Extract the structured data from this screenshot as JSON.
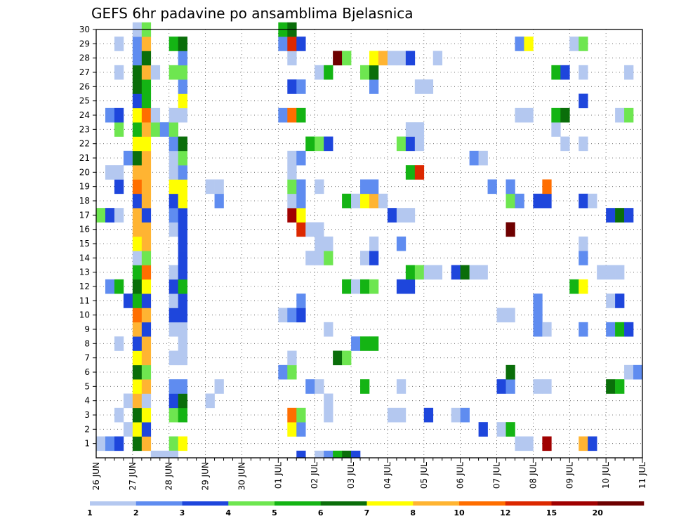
{
  "chart_data": {
    "type": "heatmap",
    "title": "GEFS 6hr padavine po ansamblima Bjelasnica",
    "xlabel": "",
    "ylabel": "",
    "x_ticks": [
      "26 JUN",
      "27 JUN",
      "28 JUN",
      "29 JUN",
      "30 JUN",
      "01 JUL",
      "02 JUL",
      "03 JUL",
      "04 JUL",
      "05 JUL",
      "06 JUL",
      "07 JUL",
      "08 JUL",
      "09 JUL",
      "10 JUL",
      "11 JUL"
    ],
    "y_ticks": [
      "1",
      "2",
      "3",
      "4",
      "5",
      "6",
      "7",
      "8",
      "9",
      "10",
      "11",
      "12",
      "13",
      "14",
      "15",
      "16",
      "17",
      "18",
      "19",
      "20",
      "21",
      "22",
      "23",
      "24",
      "25",
      "26",
      "27",
      "28",
      "29",
      "30"
    ],
    "xlim": [
      0,
      60
    ],
    "ylim": [
      0,
      30
    ],
    "grid": true,
    "colorbar": {
      "labels": [
        "1",
        "2",
        "3",
        "4",
        "5",
        "6",
        "7",
        "8",
        "10",
        "12",
        "15",
        "20"
      ],
      "colors": [
        "#b4c8f0",
        "#5f8cf0",
        "#1e46dc",
        "#6ee650",
        "#14b414",
        "#0a6e0a",
        "#ffff00",
        "#ffb432",
        "#ff6e00",
        "#dc2800",
        "#a00000",
        "#6e0000"
      ]
    },
    "cells": [
      [
        1,
        1,
        1
      ],
      [
        2,
        1,
        2
      ],
      [
        3,
        1,
        3
      ],
      [
        5,
        1,
        6
      ],
      [
        6,
        1,
        8
      ],
      [
        9,
        1,
        4
      ],
      [
        10,
        1,
        7
      ],
      [
        47,
        1,
        1
      ],
      [
        48,
        1,
        1
      ],
      [
        50,
        1,
        11
      ],
      [
        54,
        1,
        8
      ],
      [
        55,
        1,
        3
      ],
      [
        4,
        2,
        1
      ],
      [
        5,
        2,
        7
      ],
      [
        6,
        2,
        3
      ],
      [
        22,
        2,
        7
      ],
      [
        23,
        2,
        2
      ],
      [
        43,
        2,
        3
      ],
      [
        45,
        2,
        1
      ],
      [
        46,
        2,
        5
      ],
      [
        3,
        3,
        1
      ],
      [
        5,
        3,
        6
      ],
      [
        6,
        3,
        7
      ],
      [
        9,
        3,
        4
      ],
      [
        10,
        3,
        5
      ],
      [
        22,
        3,
        9
      ],
      [
        23,
        3,
        4
      ],
      [
        26,
        3,
        1
      ],
      [
        33,
        3,
        1
      ],
      [
        34,
        3,
        1
      ],
      [
        37,
        3,
        3
      ],
      [
        40,
        3,
        1
      ],
      [
        41,
        3,
        2
      ],
      [
        4,
        4,
        1
      ],
      [
        5,
        4,
        8
      ],
      [
        6,
        4,
        1
      ],
      [
        9,
        4,
        3
      ],
      [
        10,
        4,
        6
      ],
      [
        13,
        4,
        1
      ],
      [
        26,
        4,
        1
      ],
      [
        5,
        5,
        7
      ],
      [
        6,
        5,
        8
      ],
      [
        9,
        5,
        2
      ],
      [
        10,
        5,
        2
      ],
      [
        14,
        5,
        1
      ],
      [
        24,
        5,
        2
      ],
      [
        25,
        5,
        1
      ],
      [
        30,
        5,
        5
      ],
      [
        34,
        5,
        1
      ],
      [
        45,
        5,
        3
      ],
      [
        46,
        5,
        2
      ],
      [
        49,
        5,
        1
      ],
      [
        50,
        5,
        1
      ],
      [
        57,
        5,
        6
      ],
      [
        58,
        5,
        5
      ],
      [
        5,
        6,
        6
      ],
      [
        6,
        6,
        4
      ],
      [
        21,
        6,
        2
      ],
      [
        22,
        6,
        4
      ],
      [
        46,
        6,
        6
      ],
      [
        59,
        6,
        1
      ],
      [
        60,
        6,
        2
      ],
      [
        5,
        7,
        7
      ],
      [
        6,
        7,
        8
      ],
      [
        9,
        7,
        1
      ],
      [
        10,
        7,
        1
      ],
      [
        22,
        7,
        1
      ],
      [
        27,
        7,
        6
      ],
      [
        28,
        7,
        4
      ],
      [
        3,
        8,
        1
      ],
      [
        5,
        8,
        3
      ],
      [
        6,
        8,
        8
      ],
      [
        10,
        8,
        1
      ],
      [
        29,
        8,
        2
      ],
      [
        30,
        8,
        5
      ],
      [
        31,
        8,
        5
      ],
      [
        5,
        9,
        8
      ],
      [
        6,
        9,
        3
      ],
      [
        9,
        9,
        1
      ],
      [
        10,
        9,
        1
      ],
      [
        26,
        9,
        1
      ],
      [
        49,
        9,
        2
      ],
      [
        50,
        9,
        1
      ],
      [
        54,
        9,
        2
      ],
      [
        57,
        9,
        2
      ],
      [
        58,
        9,
        5
      ],
      [
        59,
        9,
        3
      ],
      [
        5,
        10,
        9
      ],
      [
        6,
        10,
        8
      ],
      [
        9,
        10,
        3
      ],
      [
        10,
        10,
        3
      ],
      [
        21,
        10,
        1
      ],
      [
        22,
        10,
        2
      ],
      [
        23,
        10,
        3
      ],
      [
        45,
        10,
        1
      ],
      [
        46,
        10,
        1
      ],
      [
        49,
        10,
        2
      ],
      [
        4,
        11,
        3
      ],
      [
        5,
        11,
        5
      ],
      [
        6,
        11,
        3
      ],
      [
        9,
        11,
        1
      ],
      [
        10,
        11,
        3
      ],
      [
        23,
        11,
        2
      ],
      [
        49,
        11,
        2
      ],
      [
        57,
        11,
        1
      ],
      [
        58,
        11,
        3
      ],
      [
        2,
        12,
        2
      ],
      [
        3,
        12,
        5
      ],
      [
        5,
        12,
        6
      ],
      [
        6,
        12,
        7
      ],
      [
        9,
        12,
        3
      ],
      [
        10,
        12,
        5
      ],
      [
        28,
        12,
        5
      ],
      [
        29,
        12,
        1
      ],
      [
        30,
        12,
        5
      ],
      [
        31,
        12,
        4
      ],
      [
        34,
        12,
        3
      ],
      [
        35,
        12,
        3
      ],
      [
        53,
        12,
        5
      ],
      [
        54,
        12,
        7
      ],
      [
        5,
        13,
        5
      ],
      [
        6,
        13,
        9
      ],
      [
        9,
        13,
        1
      ],
      [
        10,
        13,
        3
      ],
      [
        35,
        13,
        5
      ],
      [
        36,
        13,
        4
      ],
      [
        37,
        13,
        1
      ],
      [
        38,
        13,
        1
      ],
      [
        40,
        13,
        3
      ],
      [
        41,
        13,
        6
      ],
      [
        42,
        13,
        1
      ],
      [
        43,
        13,
        1
      ],
      [
        56,
        13,
        1
      ],
      [
        57,
        13,
        1
      ],
      [
        58,
        13,
        1
      ],
      [
        5,
        14,
        1
      ],
      [
        6,
        14,
        4
      ],
      [
        10,
        14,
        3
      ],
      [
        24,
        14,
        1
      ],
      [
        25,
        14,
        1
      ],
      [
        26,
        14,
        4
      ],
      [
        30,
        14,
        1
      ],
      [
        31,
        14,
        3
      ],
      [
        54,
        14,
        2
      ],
      [
        5,
        15,
        7
      ],
      [
        6,
        15,
        8
      ],
      [
        10,
        15,
        3
      ],
      [
        25,
        15,
        1
      ],
      [
        26,
        15,
        1
      ],
      [
        31,
        15,
        1
      ],
      [
        34,
        15,
        2
      ],
      [
        54,
        15,
        1
      ],
      [
        5,
        16,
        8
      ],
      [
        6,
        16,
        8
      ],
      [
        9,
        16,
        1
      ],
      [
        10,
        16,
        3
      ],
      [
        23,
        16,
        10
      ],
      [
        24,
        16,
        1
      ],
      [
        25,
        16,
        1
      ],
      [
        46,
        16,
        12
      ],
      [
        1,
        17,
        4
      ],
      [
        2,
        17,
        3
      ],
      [
        3,
        17,
        1
      ],
      [
        5,
        17,
        8
      ],
      [
        6,
        17,
        3
      ],
      [
        9,
        17,
        2
      ],
      [
        10,
        17,
        3
      ],
      [
        22,
        17,
        11
      ],
      [
        23,
        17,
        7
      ],
      [
        33,
        17,
        3
      ],
      [
        34,
        17,
        1
      ],
      [
        35,
        17,
        1
      ],
      [
        57,
        17,
        3
      ],
      [
        58,
        17,
        6
      ],
      [
        59,
        17,
        3
      ],
      [
        5,
        18,
        3
      ],
      [
        6,
        18,
        8
      ],
      [
        9,
        18,
        3
      ],
      [
        10,
        18,
        7
      ],
      [
        14,
        18,
        2
      ],
      [
        22,
        18,
        1
      ],
      [
        23,
        18,
        2
      ],
      [
        28,
        18,
        5
      ],
      [
        29,
        18,
        1
      ],
      [
        30,
        18,
        7
      ],
      [
        31,
        18,
        8
      ],
      [
        32,
        18,
        1
      ],
      [
        46,
        18,
        4
      ],
      [
        47,
        18,
        2
      ],
      [
        49,
        18,
        3
      ],
      [
        50,
        18,
        3
      ],
      [
        54,
        18,
        3
      ],
      [
        55,
        18,
        1
      ],
      [
        3,
        19,
        3
      ],
      [
        5,
        19,
        9
      ],
      [
        6,
        19,
        8
      ],
      [
        9,
        19,
        7
      ],
      [
        10,
        19,
        7
      ],
      [
        13,
        19,
        1
      ],
      [
        14,
        19,
        1
      ],
      [
        22,
        19,
        4
      ],
      [
        23,
        19,
        2
      ],
      [
        25,
        19,
        1
      ],
      [
        30,
        19,
        2
      ],
      [
        31,
        19,
        2
      ],
      [
        44,
        19,
        2
      ],
      [
        46,
        19,
        2
      ],
      [
        50,
        19,
        9
      ],
      [
        2,
        20,
        1
      ],
      [
        3,
        20,
        1
      ],
      [
        5,
        20,
        8
      ],
      [
        6,
        20,
        8
      ],
      [
        9,
        20,
        1
      ],
      [
        10,
        20,
        2
      ],
      [
        22,
        20,
        1
      ],
      [
        35,
        20,
        5
      ],
      [
        36,
        20,
        10
      ],
      [
        4,
        21,
        2
      ],
      [
        5,
        21,
        6
      ],
      [
        6,
        21,
        8
      ],
      [
        9,
        21,
        1
      ],
      [
        10,
        21,
        4
      ],
      [
        22,
        21,
        1
      ],
      [
        23,
        21,
        2
      ],
      [
        42,
        21,
        2
      ],
      [
        43,
        21,
        1
      ],
      [
        5,
        22,
        7
      ],
      [
        6,
        22,
        7
      ],
      [
        9,
        22,
        2
      ],
      [
        10,
        22,
        6
      ],
      [
        24,
        22,
        5
      ],
      [
        25,
        22,
        4
      ],
      [
        26,
        22,
        3
      ],
      [
        34,
        22,
        4
      ],
      [
        35,
        22,
        3
      ],
      [
        36,
        22,
        1
      ],
      [
        52,
        22,
        1
      ],
      [
        54,
        22,
        1
      ],
      [
        3,
        23,
        4
      ],
      [
        5,
        23,
        5
      ],
      [
        6,
        23,
        8
      ],
      [
        7,
        23,
        4
      ],
      [
        8,
        23,
        2
      ],
      [
        9,
        23,
        4
      ],
      [
        35,
        23,
        1
      ],
      [
        36,
        23,
        1
      ],
      [
        51,
        23,
        1
      ],
      [
        2,
        24,
        2
      ],
      [
        3,
        24,
        3
      ],
      [
        5,
        24,
        7
      ],
      [
        6,
        24,
        9
      ],
      [
        7,
        24,
        1
      ],
      [
        9,
        24,
        1
      ],
      [
        10,
        24,
        1
      ],
      [
        21,
        24,
        2
      ],
      [
        22,
        24,
        9
      ],
      [
        23,
        24,
        5
      ],
      [
        47,
        24,
        1
      ],
      [
        48,
        24,
        1
      ],
      [
        51,
        24,
        5
      ],
      [
        52,
        24,
        6
      ],
      [
        58,
        24,
        1
      ],
      [
        59,
        24,
        4
      ],
      [
        5,
        25,
        3
      ],
      [
        6,
        25,
        5
      ],
      [
        10,
        25,
        7
      ],
      [
        54,
        25,
        3
      ],
      [
        5,
        26,
        6
      ],
      [
        6,
        26,
        5
      ],
      [
        10,
        26,
        2
      ],
      [
        22,
        26,
        3
      ],
      [
        23,
        26,
        2
      ],
      [
        31,
        26,
        2
      ],
      [
        36,
        26,
        1
      ],
      [
        37,
        26,
        1
      ],
      [
        3,
        27,
        1
      ],
      [
        5,
        27,
        6
      ],
      [
        6,
        27,
        8
      ],
      [
        7,
        27,
        1
      ],
      [
        9,
        27,
        4
      ],
      [
        10,
        27,
        4
      ],
      [
        25,
        27,
        1
      ],
      [
        26,
        27,
        5
      ],
      [
        30,
        27,
        4
      ],
      [
        31,
        27,
        6
      ],
      [
        51,
        27,
        5
      ],
      [
        52,
        27,
        3
      ],
      [
        54,
        27,
        1
      ],
      [
        59,
        27,
        1
      ],
      [
        5,
        28,
        2
      ],
      [
        6,
        28,
        6
      ],
      [
        10,
        28,
        2
      ],
      [
        22,
        28,
        1
      ],
      [
        27,
        28,
        12
      ],
      [
        28,
        28,
        4
      ],
      [
        31,
        28,
        7
      ],
      [
        32,
        28,
        8
      ],
      [
        33,
        28,
        1
      ],
      [
        34,
        28,
        1
      ],
      [
        35,
        28,
        3
      ],
      [
        38,
        28,
        1
      ],
      [
        3,
        29,
        1
      ],
      [
        5,
        29,
        2
      ],
      [
        6,
        29,
        8
      ],
      [
        9,
        29,
        5
      ],
      [
        10,
        29,
        6
      ],
      [
        21,
        29,
        2
      ],
      [
        22,
        29,
        10
      ],
      [
        23,
        29,
        3
      ],
      [
        47,
        29,
        2
      ],
      [
        48,
        29,
        7
      ],
      [
        53,
        29,
        1
      ],
      [
        54,
        29,
        4
      ],
      [
        5,
        30,
        1
      ],
      [
        6,
        30,
        4
      ],
      [
        21,
        30,
        5
      ],
      [
        22,
        30,
        6
      ],
      [
        23,
        0,
        3
      ],
      [
        25,
        0,
        1
      ],
      [
        26,
        0,
        2
      ],
      [
        27,
        0,
        5
      ],
      [
        28,
        0,
        6
      ],
      [
        29,
        0,
        3
      ],
      [
        7,
        0,
        1
      ],
      [
        8,
        0,
        1
      ],
      [
        9,
        0,
        1
      ]
    ]
  }
}
